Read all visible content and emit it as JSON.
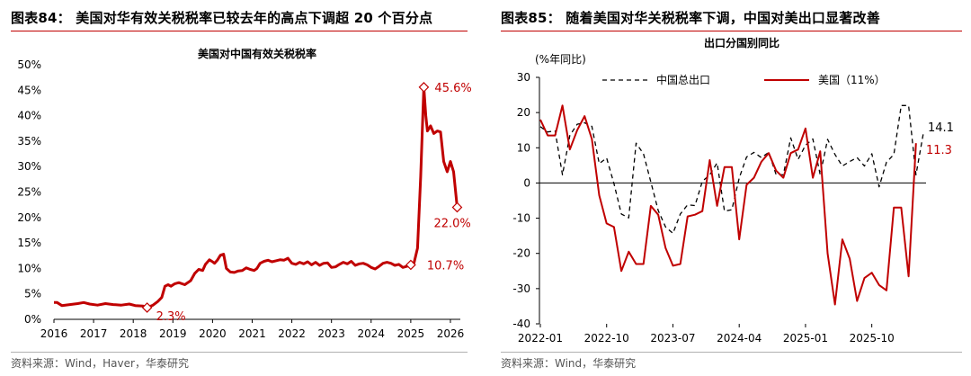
{
  "left": {
    "figure_title": "图表84： 美国对华有效关税税率已较去年的高点下调超 20 个百分点",
    "source": "资料来源：Wind，Haver，华泰研究"
  },
  "right": {
    "figure_title": "图表85： 随着美国对华关税税率下调，中国对美出口显著改善",
    "source": "资料来源：Wind，华泰研究"
  },
  "colors": {
    "red": "#c00000",
    "black": "#000000",
    "accent_rule": "#c00000"
  },
  "chart_data": [
    {
      "type": "line",
      "title": "美国对中国有效关税税率",
      "xlabel": "",
      "ylabel": "",
      "x_tick_labels": [
        "2016",
        "2017",
        "2018",
        "2019",
        "2020",
        "2021",
        "2022",
        "2023",
        "2024",
        "2025",
        "2026"
      ],
      "y_tick_labels": [
        "0%",
        "5%",
        "10%",
        "15%",
        "20%",
        "25%",
        "30%",
        "35%",
        "40%",
        "45%",
        "50%"
      ],
      "xlim": [
        2016.0,
        2026.25
      ],
      "ylim": [
        0,
        50
      ],
      "grid": false,
      "series": [
        {
          "color": "#c00000",
          "points": [
            [
              2016.0,
              3.3
            ],
            [
              2016.08,
              3.3
            ],
            [
              2016.2,
              2.7
            ],
            [
              2016.4,
              2.9
            ],
            [
              2016.6,
              3.1
            ],
            [
              2016.75,
              3.3
            ],
            [
              2016.9,
              3.0
            ],
            [
              2017.1,
              2.8
            ],
            [
              2017.3,
              3.1
            ],
            [
              2017.5,
              2.9
            ],
            [
              2017.7,
              2.8
            ],
            [
              2017.9,
              3.0
            ],
            [
              2018.05,
              2.7
            ],
            [
              2018.25,
              2.6
            ],
            [
              2018.35,
              2.3
            ],
            [
              2018.5,
              2.8
            ],
            [
              2018.62,
              3.5
            ],
            [
              2018.72,
              4.3
            ],
            [
              2018.8,
              6.5
            ],
            [
              2018.88,
              6.8
            ],
            [
              2018.95,
              6.5
            ],
            [
              2019.05,
              7.0
            ],
            [
              2019.15,
              7.2
            ],
            [
              2019.3,
              6.8
            ],
            [
              2019.45,
              7.6
            ],
            [
              2019.55,
              9.0
            ],
            [
              2019.65,
              9.8
            ],
            [
              2019.75,
              9.6
            ],
            [
              2019.82,
              10.8
            ],
            [
              2019.92,
              11.7
            ],
            [
              2020.0,
              11.3
            ],
            [
              2020.05,
              11.0
            ],
            [
              2020.12,
              11.6
            ],
            [
              2020.2,
              12.6
            ],
            [
              2020.28,
              12.8
            ],
            [
              2020.35,
              10.0
            ],
            [
              2020.45,
              9.3
            ],
            [
              2020.55,
              9.2
            ],
            [
              2020.65,
              9.5
            ],
            [
              2020.75,
              9.6
            ],
            [
              2020.85,
              10.1
            ],
            [
              2020.95,
              9.8
            ],
            [
              2021.05,
              9.6
            ],
            [
              2021.12,
              10.0
            ],
            [
              2021.2,
              11.0
            ],
            [
              2021.3,
              11.4
            ],
            [
              2021.4,
              11.6
            ],
            [
              2021.5,
              11.3
            ],
            [
              2021.6,
              11.5
            ],
            [
              2021.7,
              11.7
            ],
            [
              2021.8,
              11.6
            ],
            [
              2021.9,
              12.0
            ],
            [
              2022.0,
              11.0
            ],
            [
              2022.1,
              10.8
            ],
            [
              2022.2,
              11.2
            ],
            [
              2022.3,
              10.9
            ],
            [
              2022.4,
              11.3
            ],
            [
              2022.5,
              10.7
            ],
            [
              2022.6,
              11.2
            ],
            [
              2022.7,
              10.6
            ],
            [
              2022.8,
              11.0
            ],
            [
              2022.9,
              11.1
            ],
            [
              2023.0,
              10.2
            ],
            [
              2023.1,
              10.3
            ],
            [
              2023.2,
              10.8
            ],
            [
              2023.3,
              11.2
            ],
            [
              2023.4,
              10.9
            ],
            [
              2023.5,
              11.4
            ],
            [
              2023.6,
              10.6
            ],
            [
              2023.7,
              10.9
            ],
            [
              2023.8,
              11.0
            ],
            [
              2023.9,
              10.7
            ],
            [
              2024.0,
              10.2
            ],
            [
              2024.1,
              9.9
            ],
            [
              2024.2,
              10.4
            ],
            [
              2024.3,
              11.0
            ],
            [
              2024.4,
              11.2
            ],
            [
              2024.5,
              11.0
            ],
            [
              2024.6,
              10.6
            ],
            [
              2024.7,
              10.8
            ],
            [
              2024.8,
              10.2
            ],
            [
              2024.9,
              10.4
            ],
            [
              2025.0,
              10.7
            ],
            [
              2025.08,
              11.0
            ],
            [
              2025.17,
              14.0
            ],
            [
              2025.25,
              28.0
            ],
            [
              2025.33,
              45.6
            ],
            [
              2025.38,
              40.0
            ],
            [
              2025.42,
              37.0
            ],
            [
              2025.5,
              38.0
            ],
            [
              2025.58,
              36.5
            ],
            [
              2025.67,
              37.0
            ],
            [
              2025.75,
              36.8
            ],
            [
              2025.83,
              31.0
            ],
            [
              2025.92,
              29.0
            ],
            [
              2026.0,
              31.0
            ],
            [
              2026.08,
              29.0
            ],
            [
              2026.17,
              22.0
            ]
          ]
        }
      ],
      "annotations": [
        {
          "text": "45.6%",
          "x": 2025.33,
          "y": 45.6
        },
        {
          "text": "22.0%",
          "x": 2026.17,
          "y": 22.0
        },
        {
          "text": "10.7%",
          "x": 2025.0,
          "y": 10.7
        },
        {
          "text": "2.3%",
          "x": 2018.35,
          "y": 2.3
        }
      ]
    },
    {
      "type": "line",
      "title": "出口分国别同比",
      "ylabel": "(%年同比)",
      "xlabel": "",
      "x_tick_labels": [
        "2022-01",
        "2022-10",
        "2023-07",
        "2024-04",
        "2025-01",
        "2025-10"
      ],
      "y_tick_labels": [
        "30",
        "20",
        "10",
        "0",
        "-10",
        "-20",
        "-30",
        "-40"
      ],
      "ylim": [
        -40,
        30
      ],
      "grid": false,
      "legend_position": "top",
      "series": [
        {
          "name": "中国总出口",
          "style": "dashed",
          "color": "#000000",
          "values": [
            16.0,
            14.5,
            14.8,
            2.3,
            13.5,
            16.7,
            17.1,
            16.1,
            5.5,
            7.1,
            -0.2,
            -8.8,
            -9.9,
            11.3,
            8.3,
            0.3,
            -7.8,
            -12.5,
            -14.3,
            -8.8,
            -6.2,
            -6.4,
            0.5,
            2.3,
            5.7,
            -8.0,
            -7.6,
            1.4,
            7.4,
            8.7,
            7.2,
            8.7,
            2.4,
            2.3,
            12.8,
            6.7,
            10.7,
            12.5,
            2.3,
            12.4,
            8.1,
            4.8,
            6.1,
            7.2,
            4.8,
            8.3,
            -1.1,
            5.9,
            8.1,
            22.0,
            22.0,
            2.3,
            14.1
          ]
        },
        {
          "name": "美国（11%）",
          "style": "solid",
          "color": "#c00000",
          "values": [
            18.0,
            13.5,
            13.5,
            22.0,
            9.5,
            15.0,
            19.0,
            12.5,
            -3.5,
            -11.5,
            -12.5,
            -25.0,
            -19.5,
            -23.0,
            -23.0,
            -6.5,
            -9.0,
            -18.5,
            -23.5,
            -23.0,
            -9.5,
            -9.0,
            -8.0,
            6.5,
            -6.5,
            4.5,
            4.5,
            -16.0,
            -0.5,
            1.5,
            6.0,
            8.5,
            3.5,
            1.5,
            8.5,
            9.5,
            15.5,
            1.5,
            9.0,
            -20.0,
            -34.5,
            -16.0,
            -21.5,
            -33.5,
            -27.0,
            -25.5,
            -29.0,
            -30.5,
            -7.0,
            -7.0,
            -26.5,
            11.3
          ]
        }
      ],
      "annotations": [
        {
          "text": "14.1",
          "series": "中国总出口",
          "value": 14.1
        },
        {
          "text": "11.3",
          "series": "美国（11%）",
          "value": 11.3
        }
      ]
    }
  ]
}
